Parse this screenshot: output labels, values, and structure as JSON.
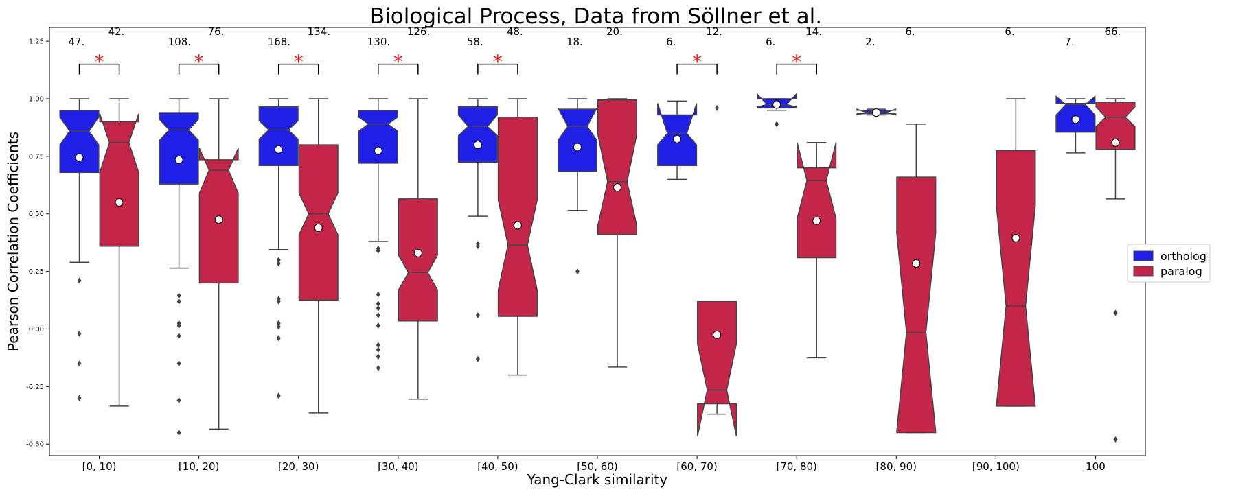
{
  "chart_data": {
    "type": "boxplot",
    "title": "Biological Process, Data from Söllner et al.",
    "xlabel": "Yang-Clark similarity",
    "ylabel": "Pearson Correlation Coefficients",
    "ylim": [
      -0.55,
      1.31
    ],
    "yticks": [
      "-0.50",
      "-0.25",
      "0.00",
      "0.25",
      "0.50",
      "0.75",
      "1.00",
      "1.25"
    ],
    "ytick_values": [
      -0.5,
      -0.25,
      0.0,
      0.25,
      0.5,
      0.75,
      1.0,
      1.25
    ],
    "notched": true,
    "legend_position": "right",
    "categories": [
      "[0, 10)",
      "[10, 20)",
      "[20, 30)",
      "[30, 40)",
      "[40, 50)",
      "[50, 60)",
      "[60, 70)",
      "[70, 80)",
      "[80, 90)",
      "[90, 100)",
      "100"
    ],
    "series": [
      {
        "name": "ortholog",
        "color": "#1f1fe6",
        "boxes": [
          {
            "whislo": 0.29,
            "q1": 0.68,
            "notchlo": 0.8,
            "med": 0.86,
            "notchhi": 0.92,
            "q3": 0.95,
            "whishi": 1.0,
            "mean": 0.745,
            "fliers": [
              0.21,
              -0.02,
              -0.15,
              -0.3
            ],
            "n": "47."
          },
          {
            "whislo": 0.265,
            "q1": 0.63,
            "notchlo": 0.82,
            "med": 0.865,
            "notchhi": 0.91,
            "q3": 0.94,
            "whishi": 1.0,
            "mean": 0.735,
            "fliers": [
              0.145,
              0.12,
              0.025,
              0.015,
              -0.03,
              -0.15,
              -0.31,
              -0.45
            ],
            "n": "108."
          },
          {
            "whislo": 0.345,
            "q1": 0.71,
            "notchlo": 0.825,
            "med": 0.865,
            "notchhi": 0.905,
            "q3": 0.965,
            "whishi": 1.0,
            "mean": 0.78,
            "fliers": [
              0.3,
              0.285,
              0.13,
              0.12,
              0.025,
              0.01,
              -0.04,
              -0.29
            ],
            "n": "168."
          },
          {
            "whislo": 0.38,
            "q1": 0.72,
            "notchlo": 0.86,
            "med": 0.89,
            "notchhi": 0.92,
            "q3": 0.95,
            "whishi": 1.0,
            "mean": 0.775,
            "fliers": [
              0.35,
              0.34,
              0.15,
              0.11,
              0.09,
              0.06,
              0.015,
              -0.07,
              -0.09,
              -0.12,
              -0.17
            ],
            "n": "130."
          },
          {
            "whislo": 0.49,
            "q1": 0.725,
            "notchlo": 0.84,
            "med": 0.88,
            "notchhi": 0.93,
            "q3": 0.965,
            "whishi": 1.0,
            "mean": 0.8,
            "fliers": [
              0.37,
              0.36,
              0.06,
              -0.13
            ],
            "n": "58."
          },
          {
            "whislo": 0.515,
            "q1": 0.685,
            "notchlo": 0.82,
            "med": 0.88,
            "notchhi": 0.96,
            "q3": 0.955,
            "whishi": 1.0,
            "mean": 0.79,
            "fliers": [
              0.25
            ],
            "n": "18."
          },
          {
            "whislo": 0.65,
            "q1": 0.71,
            "notchlo": 0.8,
            "med": 0.85,
            "notchhi": 0.98,
            "q3": 0.93,
            "whishi": 0.99,
            "mean": 0.825,
            "fliers": [],
            "n": "6."
          },
          {
            "whislo": 0.95,
            "q1": 0.96,
            "notchlo": 0.965,
            "med": 0.975,
            "notchhi": 1.02,
            "q3": 1.0,
            "whishi": 1.0,
            "mean": 0.975,
            "fliers": [
              0.89
            ],
            "n": "6."
          },
          {
            "whislo": 0.93,
            "q1": 0.935,
            "notchlo": 0.93,
            "med": 0.94,
            "notchhi": 0.955,
            "q3": 0.95,
            "whishi": 0.955,
            "mean": 0.94,
            "fliers": [],
            "n": "2."
          },
          null,
          {
            "whislo": 0.765,
            "q1": 0.855,
            "notchlo": 0.93,
            "med": 0.975,
            "notchhi": 1.01,
            "q3": 0.98,
            "whishi": 1.0,
            "mean": 0.91,
            "fliers": [],
            "n": "7."
          }
        ]
      },
      {
        "name": "paralog",
        "color": "#c4264a",
        "boxes": [
          {
            "whislo": -0.335,
            "q1": 0.36,
            "notchlo": 0.68,
            "med": 0.81,
            "notchhi": 0.935,
            "q3": 0.9,
            "whishi": 1.0,
            "mean": 0.55,
            "fliers": [],
            "n": "42."
          },
          {
            "whislo": -0.435,
            "q1": 0.2,
            "notchlo": 0.59,
            "med": 0.69,
            "notchhi": 0.785,
            "q3": 0.735,
            "whishi": 1.0,
            "mean": 0.475,
            "fliers": [],
            "n": "76."
          },
          {
            "whislo": -0.365,
            "q1": 0.125,
            "notchlo": 0.41,
            "med": 0.5,
            "notchhi": 0.59,
            "q3": 0.8,
            "whishi": 1.0,
            "mean": 0.44,
            "fliers": [],
            "n": "134."
          },
          {
            "whislo": -0.305,
            "q1": 0.035,
            "notchlo": 0.17,
            "med": 0.245,
            "notchhi": 0.32,
            "q3": 0.565,
            "whishi": 1.0,
            "mean": 0.33,
            "fliers": [],
            "n": "126."
          },
          {
            "whislo": -0.2,
            "q1": 0.055,
            "notchlo": 0.17,
            "med": 0.365,
            "notchhi": 0.56,
            "q3": 0.92,
            "whishi": 1.0,
            "mean": 0.45,
            "fliers": [],
            "n": "48."
          },
          {
            "whislo": -0.165,
            "q1": 0.41,
            "notchlo": 0.45,
            "med": 0.64,
            "notchhi": 0.845,
            "q3": 0.995,
            "whishi": 1.0,
            "mean": 0.615,
            "fliers": [],
            "n": "20."
          },
          {
            "whislo": -0.37,
            "q1": -0.325,
            "notchlo": -0.465,
            "med": -0.265,
            "notchhi": -0.065,
            "q3": 0.12,
            "whishi": 0.12,
            "mean": -0.025,
            "fliers": [
              0.96
            ],
            "n": "12."
          },
          {
            "whislo": -0.125,
            "q1": 0.31,
            "notchlo": 0.48,
            "med": 0.645,
            "notchhi": 0.81,
            "q3": 0.7,
            "whishi": 0.81,
            "mean": 0.47,
            "fliers": [],
            "n": "14."
          },
          {
            "whislo": -0.45,
            "q1": -0.45,
            "notchlo": -0.445,
            "med": -0.015,
            "notchhi": 0.415,
            "q3": 0.66,
            "whishi": 0.89,
            "mean": 0.285,
            "fliers": [],
            "n": "6."
          },
          {
            "whislo": -0.335,
            "q1": -0.335,
            "notchlo": -0.335,
            "med": 0.1,
            "notchhi": 0.535,
            "q3": 0.775,
            "whishi": 1.0,
            "mean": 0.395,
            "fliers": [],
            "n": "6."
          },
          {
            "whislo": 0.565,
            "q1": 0.78,
            "notchlo": 0.88,
            "med": 0.92,
            "notchhi": 0.965,
            "q3": 0.985,
            "whishi": 1.0,
            "mean": 0.81,
            "fliers": [
              0.07,
              -0.48
            ],
            "n": "66."
          }
        ]
      }
    ],
    "significant": [
      true,
      true,
      true,
      true,
      true,
      false,
      true,
      true,
      false,
      false,
      false
    ],
    "significance_marker": "*"
  }
}
